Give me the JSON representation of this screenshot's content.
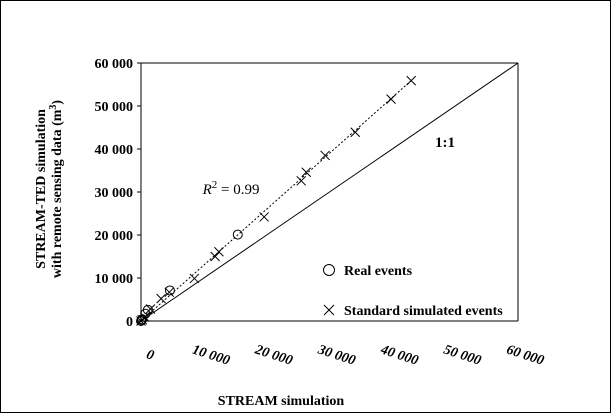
{
  "chart_data": {
    "type": "scatter",
    "xlabel": "STREAM simulation",
    "ylabel_line1": "STREAM-TED simulation",
    "ylabel_line2": "with remote  sensing data (m",
    "ylabel_sup": "3",
    "ylabel_close": ")",
    "xlim": [
      0,
      60000
    ],
    "ylim": [
      0,
      60000
    ],
    "x_ticks": [
      0,
      10000,
      20000,
      30000,
      40000,
      50000,
      60000
    ],
    "y_ticks": [
      0,
      10000,
      20000,
      30000,
      40000,
      50000,
      60000
    ],
    "x_tick_labels": [
      "0",
      "10 000",
      "20 000",
      "30 000",
      "40 000",
      "50 000",
      "60 000"
    ],
    "y_tick_labels": [
      "0",
      "10 000",
      "20 000",
      "30 000",
      "40 000",
      "50 000",
      "60 000"
    ],
    "grid": false,
    "legend_position": "bottom-right",
    "series": [
      {
        "name": "Real events",
        "marker": "circle",
        "x": [
          0,
          100,
          200,
          700,
          1100,
          4600,
          15400
        ],
        "y": [
          0,
          200,
          400,
          1700,
          2600,
          7100,
          20100
        ]
      },
      {
        "name": "Standard simulated events",
        "marker": "x",
        "x": [
          0,
          200,
          600,
          1500,
          3200,
          4500,
          8500,
          11800,
          12400,
          19600,
          25500,
          26300,
          29300,
          34100,
          39800,
          43000
        ],
        "y": [
          0,
          300,
          900,
          2800,
          5200,
          6700,
          9900,
          15000,
          16100,
          24200,
          32600,
          34600,
          38500,
          43900,
          51600,
          55900
        ]
      }
    ],
    "reference_line": {
      "label": "1:1",
      "x": [
        0,
        60000
      ],
      "y": [
        0,
        60000
      ]
    },
    "fit_line": {
      "x": [
        0,
        43000
      ],
      "y": [
        0,
        55900
      ]
    },
    "r2_prefix": "R",
    "r2_sup": "2",
    "r2_value": " = 0.99"
  }
}
